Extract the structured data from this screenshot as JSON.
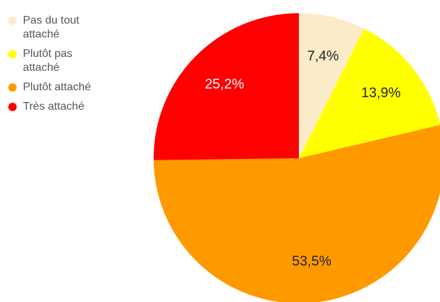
{
  "chart_data": {
    "type": "pie",
    "categories": [
      "Pas du tout attaché",
      "Plutôt pas attaché",
      "Plutôt attaché",
      "Très attaché"
    ],
    "values": [
      7.4,
      13.9,
      53.5,
      25.2
    ],
    "value_labels": [
      "7,4%",
      "13,9%",
      "53,5%",
      "25,2%"
    ],
    "colors": [
      "#fcebc9",
      "#ffff00",
      "#ff9900",
      "#ff0000"
    ],
    "legend": "left"
  }
}
